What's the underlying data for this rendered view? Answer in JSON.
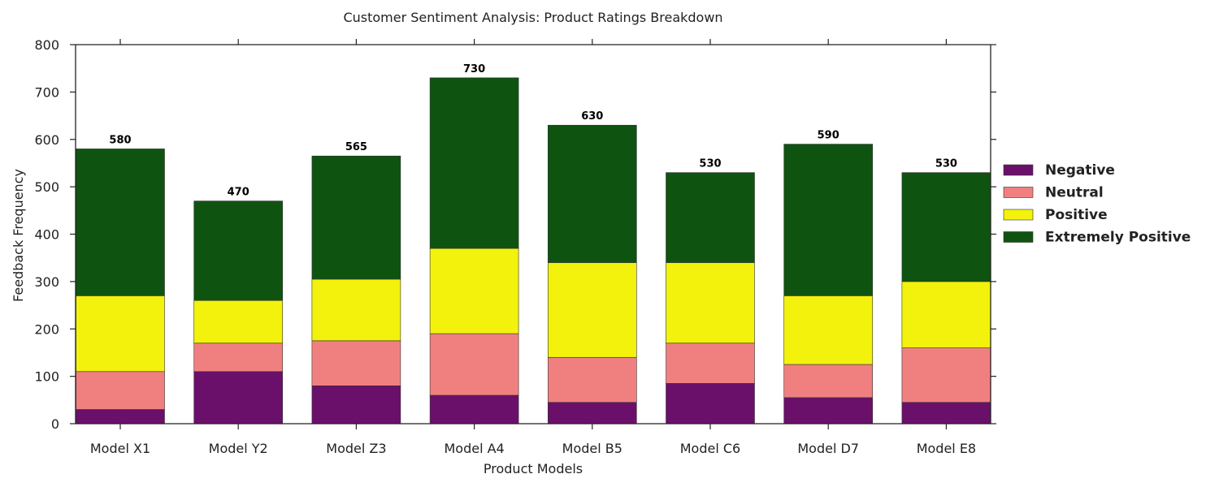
{
  "chart_data": {
    "type": "bar",
    "stacked": true,
    "title": "Customer Sentiment Analysis: Product Ratings Breakdown",
    "xlabel": "Product Models",
    "ylabel": "Feedback Frequency",
    "ylim": [
      0,
      800
    ],
    "yticks": [
      "0",
      "100",
      "200",
      "300",
      "400",
      "500",
      "600",
      "700",
      "800"
    ],
    "categories": [
      "Model X1",
      "Model Y2",
      "Model Z3",
      "Model A4",
      "Model B5",
      "Model C6",
      "Model D7",
      "Model E8"
    ],
    "series": [
      {
        "name": "Negative",
        "color": "#6a106a",
        "values": [
          30,
          110,
          80,
          60,
          45,
          85,
          55,
          45
        ]
      },
      {
        "name": "Neutral",
        "color": "#f08080",
        "values": [
          80,
          60,
          95,
          130,
          95,
          85,
          70,
          115
        ]
      },
      {
        "name": "Positive",
        "color": "#f2f20c",
        "values": [
          160,
          90,
          130,
          180,
          200,
          170,
          145,
          140
        ]
      },
      {
        "name": "Extremely Positive",
        "color": "#0e5410",
        "values": [
          310,
          210,
          260,
          360,
          290,
          190,
          320,
          230
        ]
      }
    ],
    "totals": [
      "580",
      "470",
      "565",
      "730",
      "630",
      "530",
      "590",
      "530"
    ],
    "legend_position": "right",
    "grid": false
  }
}
